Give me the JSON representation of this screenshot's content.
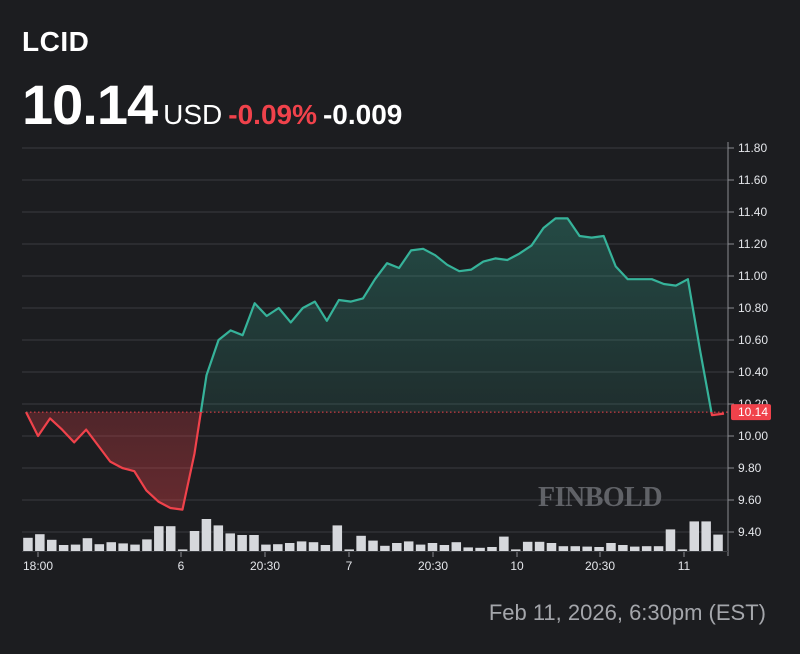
{
  "header": {
    "ticker": "LCID",
    "price": "10.14",
    "currency": "USD",
    "change_pct": "-0.09%",
    "change_abs": "-0.009"
  },
  "footer": {
    "timestamp": "Feb 11, 2026, 6:30pm (EST)"
  },
  "watermark": "FINBOLD",
  "colors": {
    "background": "#1c1d20",
    "up": "#36b39a",
    "down": "#f0424b",
    "volume": "#d6d8dc",
    "grid": "#3a3c40"
  },
  "chart_data": {
    "type": "line",
    "title": "",
    "xlabel": "",
    "ylabel": "",
    "ylim": [
      9.35,
      11.85
    ],
    "y_ticks": [
      "11.80",
      "11.60",
      "11.40",
      "11.20",
      "11.00",
      "10.80",
      "10.60",
      "10.40",
      "10.20",
      "10.00",
      "9.80",
      "9.60",
      "9.40"
    ],
    "x_ticks": [
      "18:00",
      "6",
      "20:30",
      "7",
      "20:30",
      "10",
      "20:30",
      "11"
    ],
    "grid": true,
    "baseline": 10.149,
    "current_label": "10.14",
    "price": [
      10.15,
      10.0,
      10.11,
      10.04,
      9.96,
      10.04,
      9.94,
      9.84,
      9.8,
      9.78,
      9.66,
      9.59,
      9.55,
      9.54,
      9.89,
      10.38,
      10.6,
      10.66,
      10.63,
      10.83,
      10.75,
      10.8,
      10.71,
      10.8,
      10.84,
      10.72,
      10.85,
      10.84,
      10.86,
      10.98,
      11.08,
      11.05,
      11.16,
      11.17,
      11.13,
      11.07,
      11.03,
      11.04,
      11.09,
      11.11,
      11.1,
      11.14,
      11.19,
      11.3,
      11.36,
      11.36,
      11.25,
      11.24,
      11.25,
      11.06,
      10.98,
      10.98,
      10.98,
      10.95,
      10.94,
      10.98,
      10.54,
      10.13,
      10.14
    ],
    "volume": [
      0.33,
      0.42,
      0.28,
      0.15,
      0.16,
      0.32,
      0.17,
      0.22,
      0.19,
      0.16,
      0.29,
      0.62,
      0.62,
      0.04,
      0.5,
      0.8,
      0.64,
      0.44,
      0.4,
      0.4,
      0.16,
      0.17,
      0.2,
      0.24,
      0.22,
      0.15,
      0.64,
      0.04,
      0.38,
      0.26,
      0.13,
      0.2,
      0.24,
      0.16,
      0.2,
      0.15,
      0.22,
      0.09,
      0.08,
      0.1,
      0.36,
      0.04,
      0.23,
      0.23,
      0.2,
      0.12,
      0.12,
      0.11,
      0.1,
      0.2,
      0.15,
      0.11,
      0.12,
      0.12,
      0.54,
      0.04,
      0.74,
      0.74,
      0.41
    ]
  }
}
